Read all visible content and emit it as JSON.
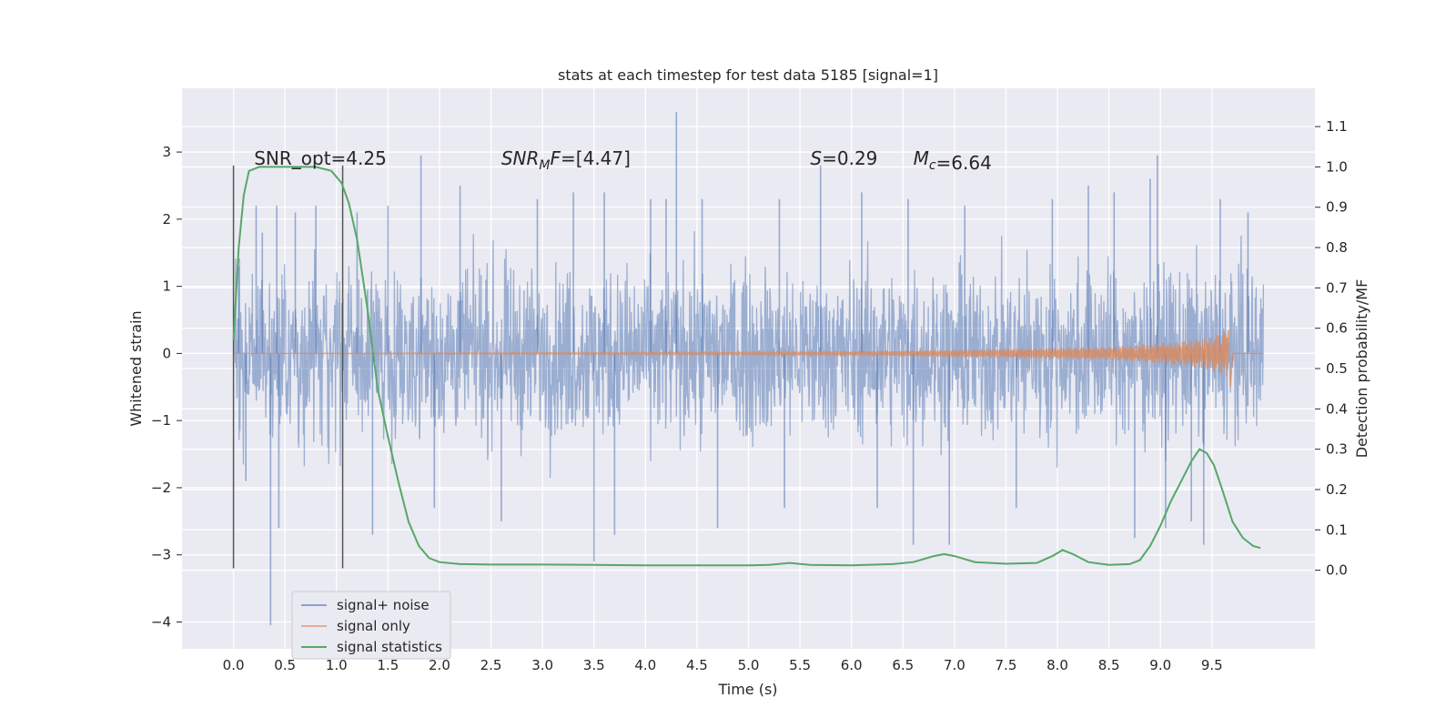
{
  "chart_data": {
    "type": "line",
    "title": "stats at each timestep for test data 5185 [signal=1]",
    "xlabel": "Time (s)",
    "ylabel": "Whitened strain",
    "y2label": "Detection probability/MF",
    "xlim": [
      -0.5,
      10.5
    ],
    "ylim": [
      -4.4,
      3.95
    ],
    "y2lim": [
      -0.195,
      1.195
    ],
    "xticks": [
      0.0,
      0.5,
      1.0,
      1.5,
      2.0,
      2.5,
      3.0,
      3.5,
      4.0,
      4.5,
      5.0,
      5.5,
      6.0,
      6.5,
      7.0,
      7.5,
      8.0,
      8.5,
      9.0,
      9.5
    ],
    "xtick_labels": [
      "0.0",
      "0.5",
      "1.0",
      "1.5",
      "2.0",
      "2.5",
      "3.0",
      "3.5",
      "4.0",
      "4.5",
      "5.0",
      "5.5",
      "6.0",
      "6.5",
      "7.0",
      "7.5",
      "8.0",
      "8.5",
      "9.0",
      "9.5"
    ],
    "yticks": [
      -4,
      -3,
      -2,
      -1,
      0,
      1,
      2,
      3
    ],
    "ytick_labels": [
      "−4",
      "−3",
      "−2",
      "−1",
      "0",
      "1",
      "2",
      "3"
    ],
    "y2ticks": [
      0.0,
      0.1,
      0.2,
      0.3,
      0.4,
      0.5,
      0.6,
      0.7,
      0.8,
      0.9,
      1.0,
      1.1
    ],
    "y2tick_labels": [
      "0.0",
      "0.1",
      "0.2",
      "0.3",
      "0.4",
      "0.5",
      "0.6",
      "0.7",
      "0.8",
      "0.9",
      "1.0",
      "1.1"
    ],
    "grid": true,
    "legend_position": "lower-left",
    "annotations": [
      {
        "text": "SNR_opt=4.25",
        "x": 0.2,
        "y": 2.85
      },
      {
        "text": "SNR_MF=[4.47]",
        "x": 2.6,
        "y": 2.85
      },
      {
        "text": "S=0.29",
        "x": 5.6,
        "y": 2.85
      },
      {
        "text": "M_c=6.64",
        "x": 6.6,
        "y": 2.85
      }
    ],
    "vlines": [
      {
        "x": 0.0,
        "ymin": -3.2,
        "ymax": 2.8
      },
      {
        "x": 1.06,
        "ymin": -3.2,
        "ymax": 2.8
      }
    ],
    "series": [
      {
        "name": "signal+ noise",
        "color": "#4c72b0",
        "axis": "left",
        "x_range": [
          0.0,
          10.0
        ],
        "description_envelope": {
          "typical_abs": 1.0,
          "spikes": [
            [
              0.05,
              1.3
            ],
            [
              0.12,
              -1.9
            ],
            [
              0.22,
              2.2
            ],
            [
              0.28,
              1.8
            ],
            [
              0.36,
              -4.05
            ],
            [
              0.42,
              2.2
            ],
            [
              0.44,
              -2.6
            ],
            [
              0.6,
              2.1
            ],
            [
              0.8,
              2.2
            ],
            [
              1.2,
              2.1
            ],
            [
              1.35,
              -2.7
            ],
            [
              1.5,
              2.2
            ],
            [
              1.82,
              2.95
            ],
            [
              1.95,
              -2.3
            ],
            [
              2.2,
              2.5
            ],
            [
              2.6,
              -2.5
            ],
            [
              2.95,
              2.3
            ],
            [
              3.3,
              2.4
            ],
            [
              3.5,
              -3.1
            ],
            [
              3.6,
              2.4
            ],
            [
              3.7,
              -2.7
            ],
            [
              4.05,
              2.3
            ],
            [
              4.2,
              2.3
            ],
            [
              4.3,
              3.6
            ],
            [
              4.55,
              2.3
            ],
            [
              4.7,
              -2.6
            ],
            [
              5.3,
              2.3
            ],
            [
              5.35,
              -2.3
            ],
            [
              5.7,
              2.8
            ],
            [
              6.1,
              2.4
            ],
            [
              6.25,
              -2.3
            ],
            [
              6.55,
              2.3
            ],
            [
              6.6,
              -2.85
            ],
            [
              6.95,
              -2.85
            ],
            [
              7.1,
              2.2
            ],
            [
              7.6,
              -2.3
            ],
            [
              7.95,
              2.3
            ],
            [
              8.3,
              2.5
            ],
            [
              8.55,
              2.4
            ],
            [
              8.75,
              -2.75
            ],
            [
              8.9,
              2.6
            ],
            [
              8.97,
              2.95
            ],
            [
              9.05,
              -2.6
            ],
            [
              9.3,
              -2.5
            ],
            [
              9.42,
              -2.85
            ],
            [
              9.58,
              2.3
            ],
            [
              9.85,
              2.1
            ]
          ]
        }
      },
      {
        "name": "signal only",
        "color": "#dd8452",
        "axis": "left",
        "x_range": [
          0.0,
          9.7
        ],
        "envelope_amplitude": [
          [
            0.0,
            0.0
          ],
          [
            5.0,
            0.02
          ],
          [
            6.5,
            0.04
          ],
          [
            7.5,
            0.07
          ],
          [
            8.5,
            0.1
          ],
          [
            9.2,
            0.18
          ],
          [
            9.5,
            0.25
          ],
          [
            9.65,
            0.35
          ],
          [
            9.68,
            -0.5
          ]
        ]
      },
      {
        "name": "signal statistics",
        "color": "#55a868",
        "axis": "right",
        "x": [
          0.0,
          0.05,
          0.1,
          0.15,
          0.25,
          0.4,
          0.6,
          0.8,
          0.95,
          1.05,
          1.12,
          1.2,
          1.3,
          1.4,
          1.5,
          1.6,
          1.7,
          1.8,
          1.9,
          2.0,
          2.2,
          2.5,
          3.0,
          3.5,
          4.0,
          4.5,
          5.0,
          5.2,
          5.4,
          5.6,
          6.0,
          6.4,
          6.6,
          6.8,
          6.9,
          7.0,
          7.2,
          7.5,
          7.8,
          7.95,
          8.05,
          8.15,
          8.3,
          8.5,
          8.7,
          8.8,
          8.9,
          9.0,
          9.1,
          9.2,
          9.3,
          9.38,
          9.45,
          9.52,
          9.6,
          9.7,
          9.8,
          9.9,
          9.97
        ],
        "values": [
          0.57,
          0.8,
          0.93,
          0.99,
          1.0,
          1.0,
          1.0,
          1.0,
          0.99,
          0.96,
          0.91,
          0.82,
          0.65,
          0.45,
          0.33,
          0.22,
          0.12,
          0.06,
          0.03,
          0.02,
          0.015,
          0.014,
          0.014,
          0.013,
          0.012,
          0.012,
          0.012,
          0.013,
          0.018,
          0.013,
          0.012,
          0.015,
          0.02,
          0.035,
          0.04,
          0.035,
          0.02,
          0.016,
          0.018,
          0.035,
          0.05,
          0.04,
          0.02,
          0.013,
          0.015,
          0.025,
          0.06,
          0.11,
          0.17,
          0.22,
          0.27,
          0.3,
          0.29,
          0.26,
          0.2,
          0.12,
          0.08,
          0.06,
          0.055
        ]
      }
    ]
  }
}
